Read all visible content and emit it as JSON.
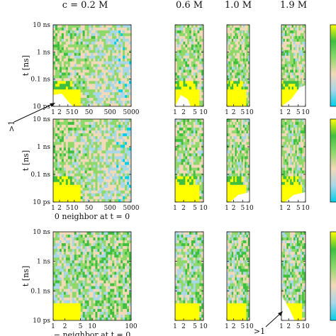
{
  "chart_data": {
    "type": "heatmap",
    "column_titles": [
      "c = 0.2 M",
      "0.6 M",
      "1.0 M",
      "1.9 M"
    ],
    "y_axis": {
      "label": "t [ns]",
      "scale": "log",
      "ticks": [
        "10 ps",
        "0.1 ns",
        "1 ns",
        "10 ns"
      ],
      "tick_values_ns": [
        0.01,
        0.1,
        1,
        10
      ]
    },
    "rows": [
      {
        "xlabel": "",
        "panels": [
          {
            "ticks": [
              "1",
              "2",
              "5",
              "10",
              "50",
              "500",
              "5000"
            ],
            "tick_values": [
              1,
              2,
              5,
              10,
              50,
              500,
              5000
            ],
            "xlim": [
              1,
              5000
            ]
          },
          {
            "ticks": [
              "1",
              "2",
              "5",
              "10"
            ],
            "tick_values": [
              1,
              2,
              5,
              10
            ],
            "xlim": [
              1,
              10
            ]
          },
          {
            "ticks": [
              "1",
              "2",
              "5",
              "10"
            ],
            "tick_values": [
              1,
              2,
              5,
              10
            ],
            "xlim": [
              1,
              10
            ]
          },
          {
            "ticks": [
              "1",
              "2",
              "5",
              "10"
            ],
            "tick_values": [
              1,
              2,
              5,
              10
            ],
            "xlim": [
              1,
              10
            ]
          }
        ]
      },
      {
        "xlabel": "0 neighbor at t = 0",
        "panels": [
          {
            "ticks": [
              "1",
              "2",
              "5",
              "10",
              "50",
              "500",
              "5000"
            ],
            "tick_values": [
              1,
              2,
              5,
              10,
              50,
              500,
              5000
            ],
            "xlim": [
              1,
              5000
            ]
          },
          {
            "ticks": [
              "1",
              "2",
              "5",
              "10"
            ],
            "tick_values": [
              1,
              2,
              5,
              10
            ],
            "xlim": [
              1,
              10
            ]
          },
          {
            "ticks": [
              "1",
              "2",
              "5",
              "10"
            ],
            "tick_values": [
              1,
              2,
              5,
              10
            ],
            "xlim": [
              1,
              10
            ]
          },
          {
            "ticks": [
              "1",
              "2",
              "5",
              "10"
            ],
            "tick_values": [
              1,
              2,
              5,
              10
            ],
            "xlim": [
              1,
              10
            ]
          }
        ]
      },
      {
        "xlabel": "− neighbor at t = 0",
        "panels": [
          {
            "ticks": [
              "1",
              "2",
              "5",
              "10",
              "100"
            ],
            "tick_values": [
              1,
              2,
              5,
              10,
              100
            ],
            "xlim": [
              1,
              100
            ]
          },
          {
            "ticks": [
              "1",
              "2",
              "5",
              "10"
            ],
            "tick_values": [
              1,
              2,
              5,
              10
            ],
            "xlim": [
              1,
              10
            ]
          },
          {
            "ticks": [
              "1",
              "2",
              "5",
              "10"
            ],
            "tick_values": [
              1,
              2,
              5,
              10
            ],
            "xlim": [
              1,
              10
            ]
          },
          {
            "ticks": [
              "1",
              "2",
              "5",
              "10"
            ],
            "tick_values": [
              1,
              2,
              5,
              10
            ],
            "xlim": [
              1,
              10
            ]
          }
        ]
      }
    ],
    "annotations": [
      ">1",
      ">1"
    ],
    "colormap": [
      "#00cfe8",
      "#a8d8e8",
      "#f2d9b8",
      "#8fd86a",
      "#3fbf3f",
      "#ffff00"
    ]
  }
}
